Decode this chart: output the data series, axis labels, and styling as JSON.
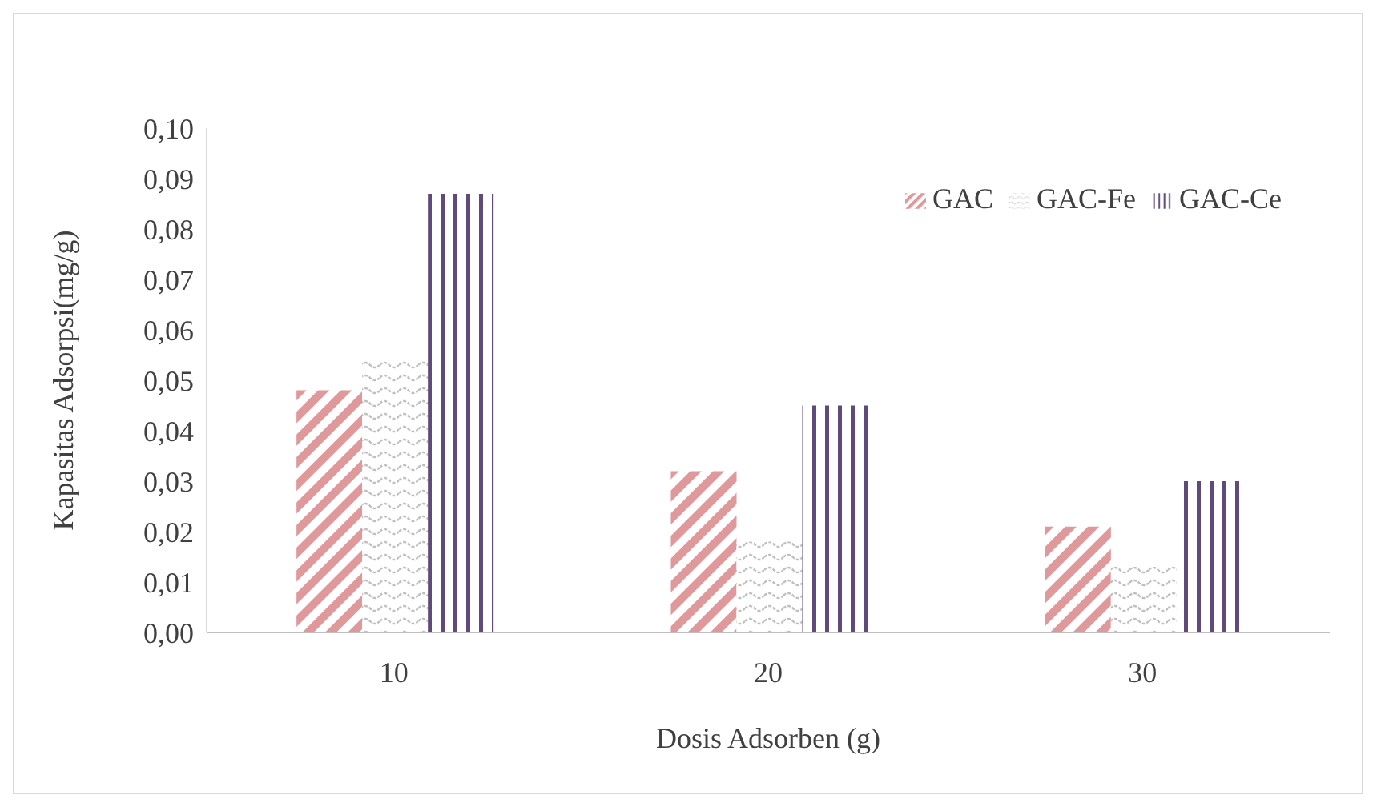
{
  "chart_data": {
    "type": "bar",
    "xlabel": "Dosis Adsorben (g)",
    "ylabel": "Kapasitas Adsorpsi(mg/g)",
    "categories": [
      "10",
      "20",
      "30"
    ],
    "series": [
      {
        "name": "GAC",
        "color": "#e0999a",
        "values": [
          0.048,
          0.032,
          0.021
        ]
      },
      {
        "name": "GAC-Fe",
        "color": "#bfbfbf",
        "values": [
          0.054,
          0.018,
          0.013
        ]
      },
      {
        "name": "GAC-Ce",
        "color": "#604a7b",
        "values": [
          0.087,
          0.045,
          0.03
        ]
      }
    ],
    "ylim": [
      0,
      0.1
    ],
    "yticks": [
      {
        "value": 0,
        "label": "0,00"
      },
      {
        "value": 0.01,
        "label": "0,01"
      },
      {
        "value": 0.02,
        "label": "0,02"
      },
      {
        "value": 0.03,
        "label": "0,03"
      },
      {
        "value": 0.04,
        "label": "0,04"
      },
      {
        "value": 0.05,
        "label": "0,05"
      },
      {
        "value": 0.06,
        "label": "0,06"
      },
      {
        "value": 0.07,
        "label": "0,07"
      },
      {
        "value": 0.08,
        "label": "0,08"
      },
      {
        "value": 0.09,
        "label": "0,09"
      },
      {
        "value": 0.1,
        "label": "0,10"
      }
    ],
    "grid": false,
    "legend": "top right"
  }
}
